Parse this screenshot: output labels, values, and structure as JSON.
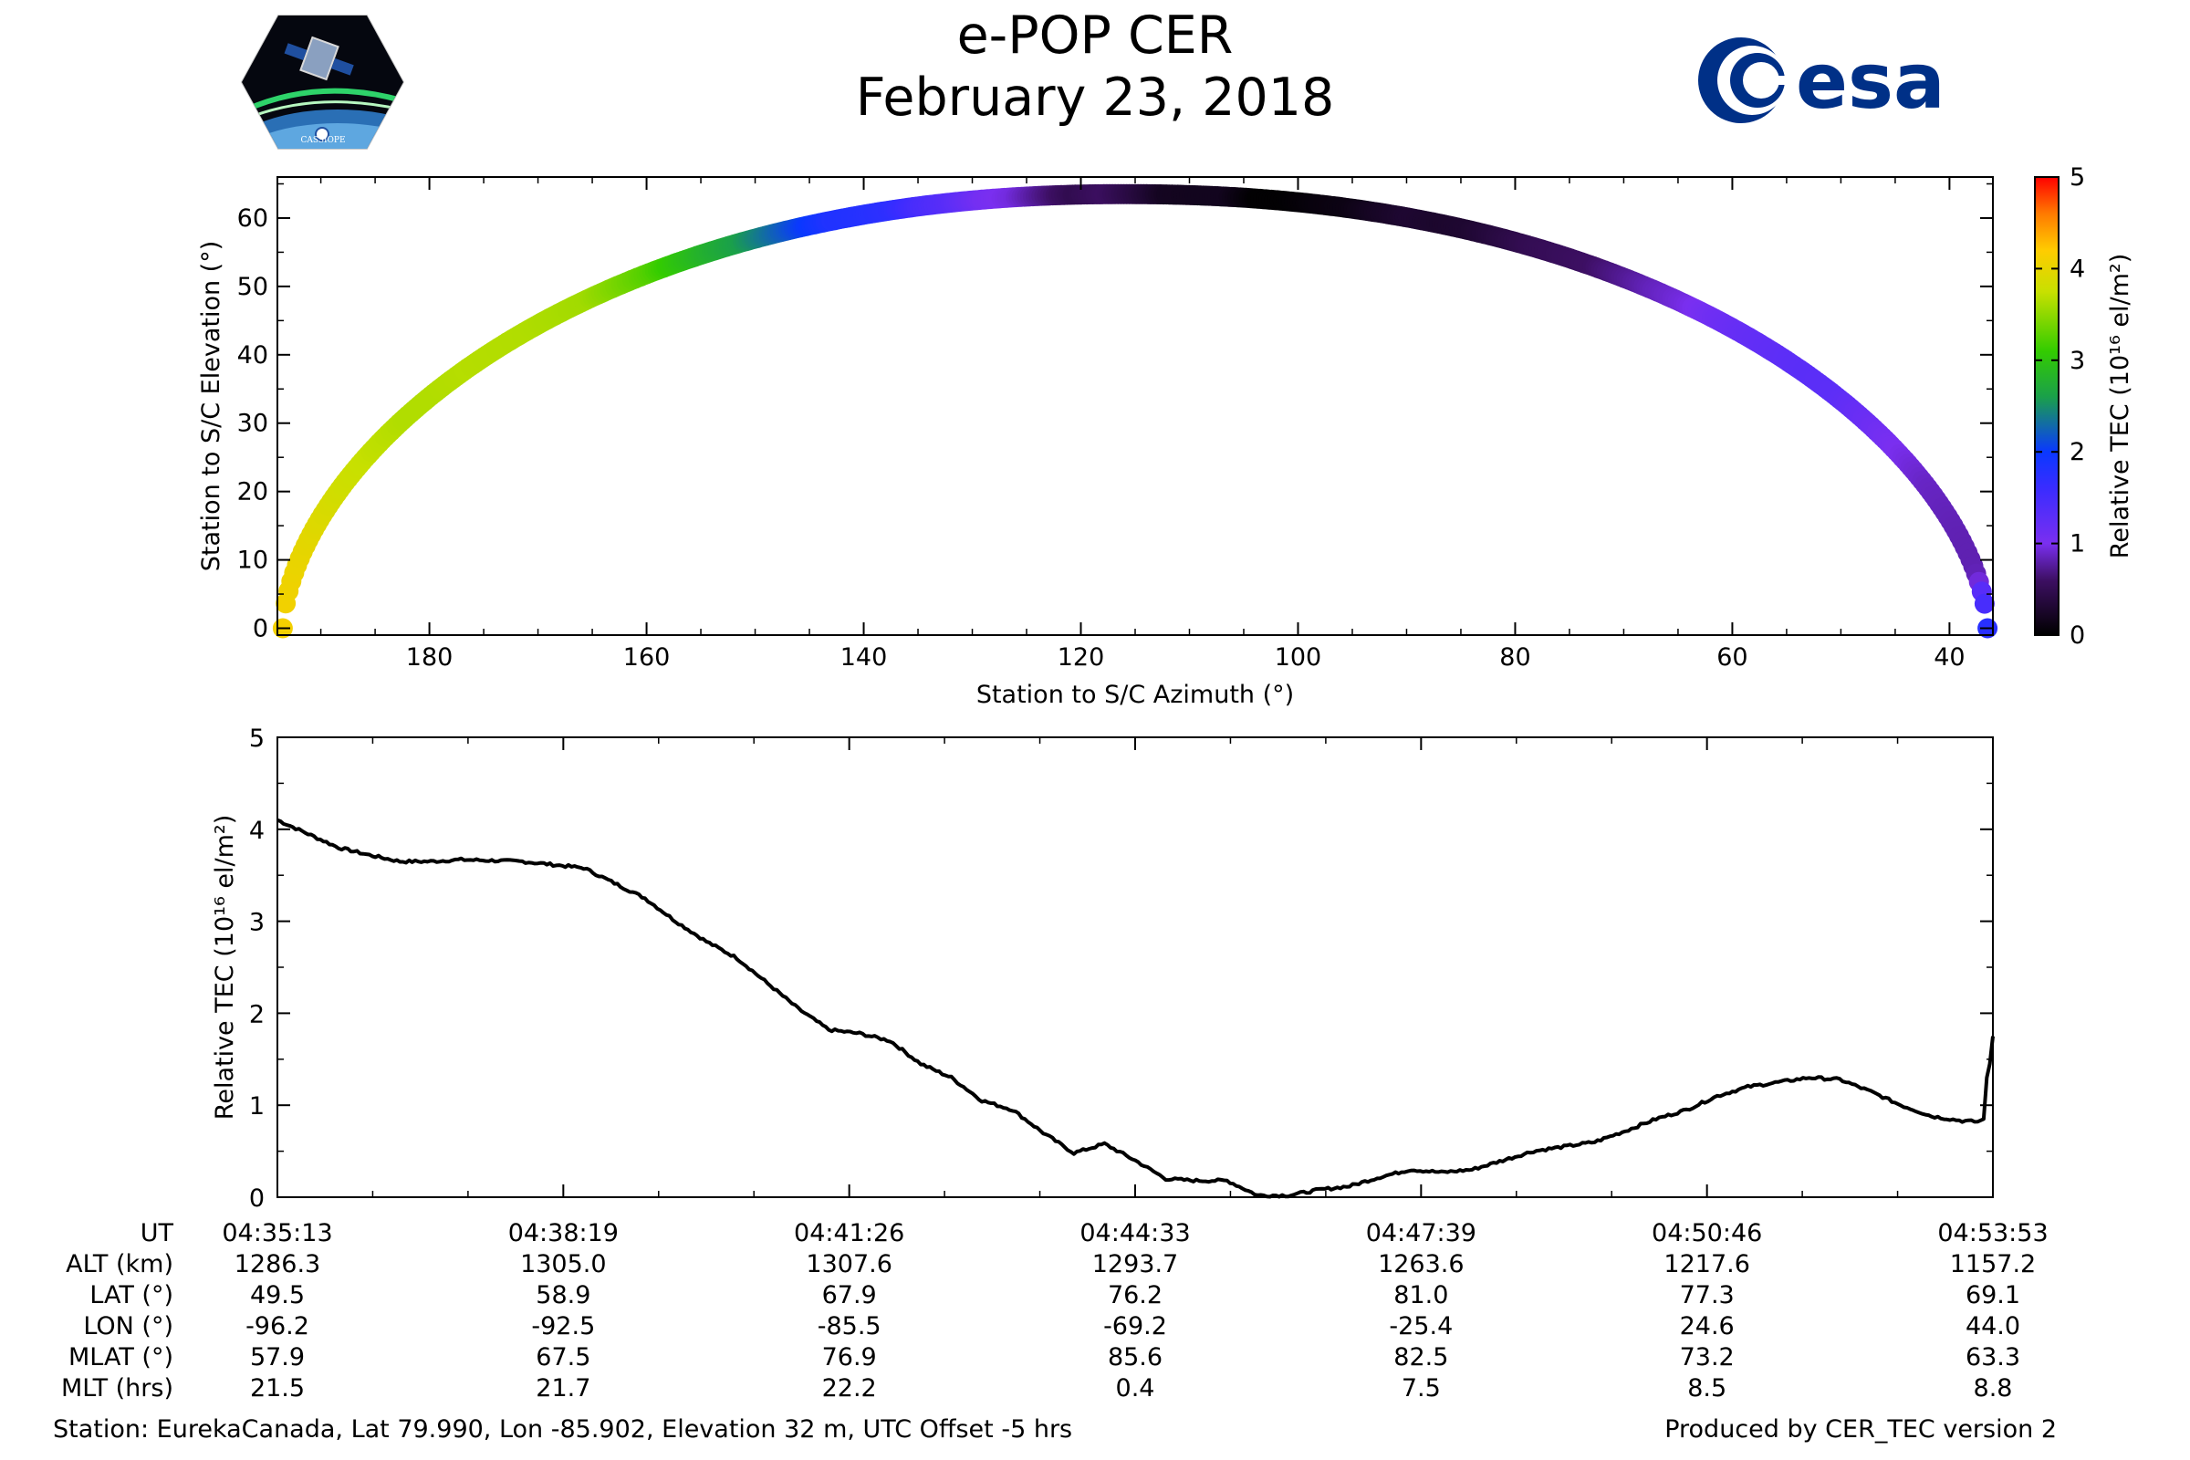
{
  "header": {
    "title": "e-POP CER",
    "date": "February 23, 2018",
    "left_logo": {
      "name": "cassiope-logo",
      "text": "CASSIOPE"
    },
    "right_logo": {
      "name": "esa-logo",
      "text": "esa",
      "color": "#003087"
    }
  },
  "chart_data": [
    {
      "type": "scatter",
      "name": "elevation-azimuth-track",
      "xlabel": "Station to S/C Azimuth (°)",
      "ylabel": "Station to S/C Elevation (°)",
      "xlim": [
        194,
        36
      ],
      "ylim": [
        -1,
        66
      ],
      "x_ticks": [
        180,
        160,
        140,
        120,
        100,
        80,
        60,
        40
      ],
      "y_ticks": [
        0,
        10,
        20,
        30,
        40,
        50,
        60
      ],
      "x_range": [
        193.5,
        36.5
      ],
      "max_elevation": 63.5,
      "max_elevation_azimuth": 116,
      "colorbar": {
        "label": "Relative TEC (10¹⁶ el/m²)",
        "range": [
          0,
          5
        ],
        "ticks": [
          0,
          1,
          2,
          3,
          4,
          5
        ],
        "colormap": "gnuplot/nipy-like: black-purple-blue-green-yellow-red"
      }
    },
    {
      "type": "line",
      "name": "relative-tec-series",
      "ylabel": "Relative TEC (10¹⁶ el/m²)",
      "xlim": [
        0,
        1120
      ],
      "ylim": [
        0,
        5
      ],
      "y_ticks": [
        0,
        1,
        2,
        3,
        4,
        5
      ],
      "x_seconds": [
        0,
        20,
        40,
        60,
        80,
        100,
        120,
        160,
        200,
        240,
        260,
        280,
        300,
        340,
        360,
        380,
        400,
        420,
        440,
        460,
        480,
        500,
        520,
        540,
        560,
        580,
        600,
        620,
        640,
        660,
        680,
        700,
        720,
        740,
        760,
        780,
        800,
        820,
        840,
        860,
        880,
        900,
        920,
        940,
        960,
        980,
        1000,
        1020,
        1040,
        1060,
        1080,
        1100,
        1110,
        1114,
        1116,
        1118,
        1120
      ],
      "values": [
        4.1,
        3.95,
        3.8,
        3.72,
        3.65,
        3.65,
        3.67,
        3.65,
        3.58,
        3.25,
        3.0,
        2.78,
        2.6,
        2.05,
        1.82,
        1.78,
        1.7,
        1.45,
        1.3,
        1.05,
        0.95,
        0.7,
        0.48,
        0.58,
        0.4,
        0.2,
        0.18,
        0.18,
        0.02,
        0.02,
        0.08,
        0.12,
        0.22,
        0.3,
        0.27,
        0.3,
        0.4,
        0.5,
        0.55,
        0.6,
        0.72,
        0.85,
        0.95,
        1.1,
        1.2,
        1.25,
        1.3,
        1.28,
        1.15,
        1.0,
        0.88,
        0.83,
        0.82,
        0.85,
        1.3,
        1.45,
        1.75
      ]
    }
  ],
  "ephemeris": {
    "row_labels": [
      "UT",
      "ALT (km)",
      "LAT (°)",
      "LON (°)",
      "MLAT (°)",
      "MLT (hrs)"
    ],
    "columns": [
      [
        "04:35:13",
        "1286.3",
        "49.5",
        "-96.2",
        "57.9",
        "21.5"
      ],
      [
        "04:38:19",
        "1305.0",
        "58.9",
        "-92.5",
        "67.5",
        "21.7"
      ],
      [
        "04:41:26",
        "1307.6",
        "67.9",
        "-85.5",
        "76.9",
        "22.2"
      ],
      [
        "04:44:33",
        "1293.7",
        "76.2",
        "-69.2",
        "85.6",
        "0.4"
      ],
      [
        "04:47:39",
        "1263.6",
        "81.0",
        "-25.4",
        "82.5",
        "7.5"
      ],
      [
        "04:50:46",
        "1217.6",
        "77.3",
        "24.6",
        "73.2",
        "8.5"
      ],
      [
        "04:53:53",
        "1157.2",
        "69.1",
        "44.0",
        "63.3",
        "8.8"
      ]
    ]
  },
  "footer": {
    "station": "Station: EurekaCanada, Lat 79.990, Lon -85.902, Elevation 32 m, UTC Offset -5 hrs",
    "producer": "Produced by CER_TEC version 2"
  }
}
